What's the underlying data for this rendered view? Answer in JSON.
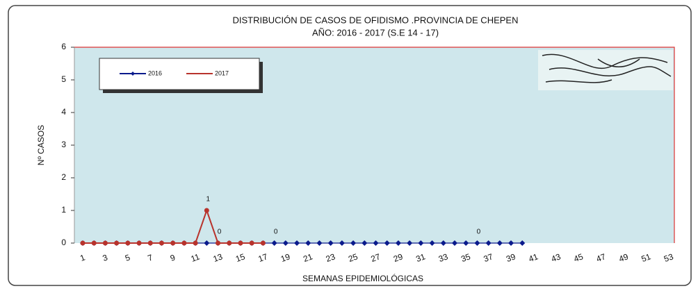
{
  "chart_data": {
    "type": "line",
    "title": "DISTRIBUCIÓN DE CASOS DE OFIDISMO .PROVINCIA DE CHEPEN",
    "subtitle": "AÑO: 2016 - 2017 (S.E 14 - 17)",
    "x_label": "SEMANAS  EPIDEMIOLÓGICAS",
    "y_label": "Nº CASOS",
    "categories": [
      1,
      null,
      3,
      null,
      5,
      null,
      7,
      null,
      9,
      null,
      11,
      null,
      13,
      null,
      15,
      null,
      17,
      null,
      19,
      null,
      21,
      null,
      23,
      null,
      25,
      null,
      27,
      null,
      29,
      null,
      31,
      null,
      33,
      null,
      35,
      null,
      37,
      null,
      39,
      null,
      41,
      null,
      43,
      null,
      45,
      null,
      47,
      null,
      49,
      null,
      51,
      null,
      53
    ],
    "series": [
      {
        "name": "2016",
        "color": "#0a1a8c",
        "values": [
          0,
          0,
          0,
          0,
          0,
          0,
          0,
          0,
          0,
          0,
          0,
          0,
          0,
          0,
          0,
          0,
          0,
          0,
          0,
          0,
          0,
          0,
          0,
          0,
          0,
          0,
          0,
          0,
          0,
          0,
          0,
          0,
          0,
          0,
          0,
          0,
          0,
          0,
          0,
          0,
          null,
          null,
          null,
          null,
          null,
          null,
          null,
          null,
          null,
          null,
          null,
          null,
          null
        ],
        "labeled_points": [
          17,
          35
        ]
      },
      {
        "name": "2017",
        "color": "#b8332c",
        "values": [
          0,
          0,
          0,
          0,
          0,
          0,
          0,
          0,
          0,
          0,
          0,
          1,
          0,
          0,
          0,
          0,
          0,
          null,
          null,
          null,
          null,
          null,
          null,
          null,
          null,
          null,
          null,
          null,
          null,
          null,
          null,
          null,
          null,
          null,
          null,
          null,
          null,
          null,
          null,
          null,
          null,
          null,
          null,
          null,
          null,
          null,
          null,
          null,
          null,
          null,
          null,
          null,
          null
        ],
        "labeled_points": [
          11,
          12
        ]
      }
    ],
    "ylim": [
      0,
      6
    ],
    "yticks": [
      0,
      1,
      2,
      3,
      4,
      5,
      6
    ],
    "legend": "top-left"
  }
}
